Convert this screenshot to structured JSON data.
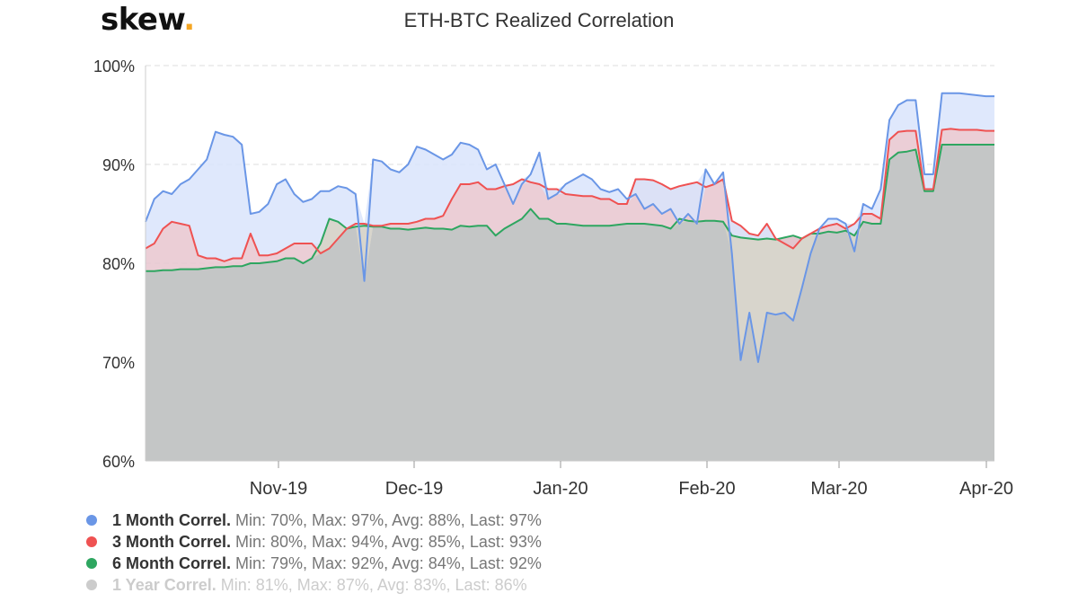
{
  "logo": {
    "text": "skew",
    "dot": "."
  },
  "colors": {
    "blue": "#6a96e6",
    "blue_fill": "#d9e4fb",
    "red": "#ef5252",
    "red_fill": "#e7c5cf",
    "green": "#2ea660",
    "green_fill": "#a8d8bb",
    "gray_fill": "#c4c6c6",
    "tan_fill": "#d8d2c4",
    "inactive": "#cccccc"
  },
  "chart_data": {
    "type": "area",
    "title": "ETH-BTC Realized Correlation",
    "ylim": [
      60,
      100
    ],
    "y_ticks": [
      "60%",
      "70%",
      "80%",
      "90%",
      "100%"
    ],
    "x_tick_labels": [
      "Nov-19",
      "Dec-19",
      "Jan-20",
      "Feb-20",
      "Mar-20",
      "Apr-20"
    ],
    "grid": "horizontal dashed",
    "legend_position": "bottom-left",
    "series": [
      {
        "name": "1 Month Correl.",
        "stats": "Min: 70%, Max: 97%, Avg: 88%, Last: 97%",
        "values": [
          84.2,
          86.5,
          87.3,
          87.0,
          88.0,
          88.5,
          89.5,
          90.5,
          93.3,
          93.0,
          92.8,
          92.0,
          85.0,
          85.2,
          86.0,
          88.0,
          88.5,
          87.0,
          86.2,
          86.5,
          87.3,
          87.3,
          87.8,
          87.6,
          87.0,
          78.2,
          90.5,
          90.3,
          89.5,
          89.2,
          90.0,
          91.8,
          91.5,
          91.0,
          90.5,
          91.0,
          92.2,
          92.0,
          91.5,
          89.5,
          90.0,
          88.0,
          86.0,
          88.0,
          89.0,
          91.2,
          86.5,
          87.0,
          88.0,
          88.5,
          89.0,
          88.5,
          87.5,
          87.2,
          87.5,
          86.5,
          87.0,
          85.5,
          86.0,
          85.0,
          85.5,
          84.0,
          85.0,
          84.0,
          89.5,
          88.0,
          89.2,
          81.0,
          70.2,
          75.0,
          70.0,
          75.0,
          74.8,
          75.0,
          74.2,
          77.5,
          81.0,
          83.5,
          84.5,
          84.5,
          84.0,
          81.2,
          86.0,
          85.5,
          87.5,
          94.5,
          96.0,
          96.5,
          96.5,
          89.0,
          89.0,
          97.2,
          97.2,
          97.2,
          97.1,
          97.0,
          96.9,
          96.9
        ]
      },
      {
        "name": "3 Month Correl.",
        "stats": "Min: 80%, Max: 94%, Avg: 85%, Last: 93%",
        "values": [
          81.5,
          82.0,
          83.5,
          84.2,
          84.0,
          83.8,
          80.8,
          80.5,
          80.5,
          80.2,
          80.5,
          80.5,
          83.0,
          80.8,
          80.8,
          81.0,
          81.5,
          82.0,
          82.0,
          82.0,
          81.0,
          81.5,
          82.5,
          83.5,
          84.0,
          84.0,
          83.8,
          83.8,
          84.0,
          84.0,
          84.0,
          84.2,
          84.5,
          84.5,
          84.8,
          86.5,
          88.0,
          88.0,
          88.2,
          87.5,
          87.5,
          87.8,
          88.0,
          88.5,
          88.2,
          88.0,
          87.5,
          87.5,
          87.0,
          86.9,
          86.8,
          86.8,
          86.5,
          86.5,
          86.0,
          86.0,
          88.5,
          88.5,
          88.4,
          88.0,
          87.5,
          87.8,
          88.0,
          88.2,
          87.7,
          88.0,
          88.5,
          84.3,
          83.8,
          83.0,
          82.8,
          84.0,
          82.5,
          82.0,
          81.5,
          82.5,
          83.0,
          83.5,
          83.8,
          84.0,
          83.5,
          84.0,
          85.0,
          85.0,
          84.5,
          92.5,
          93.3,
          93.4,
          93.4,
          87.5,
          87.5,
          93.5,
          93.6,
          93.5,
          93.5,
          93.5,
          93.4,
          93.4
        ]
      },
      {
        "name": "6 Month Correl.",
        "stats": "Min: 79%, Max: 92%, Avg: 84%, Last: 92%",
        "values": [
          79.2,
          79.2,
          79.3,
          79.3,
          79.4,
          79.4,
          79.4,
          79.5,
          79.6,
          79.6,
          79.7,
          79.7,
          80.0,
          80.0,
          80.1,
          80.2,
          80.5,
          80.5,
          80.0,
          80.5,
          82.0,
          84.5,
          84.2,
          83.5,
          83.7,
          83.8,
          83.7,
          83.7,
          83.5,
          83.5,
          83.4,
          83.5,
          83.6,
          83.5,
          83.5,
          83.4,
          83.8,
          83.7,
          83.8,
          83.8,
          82.8,
          83.5,
          84.0,
          84.5,
          85.5,
          84.5,
          84.5,
          84.0,
          84.0,
          83.9,
          83.8,
          83.8,
          83.8,
          83.8,
          83.9,
          84.0,
          84.0,
          84.0,
          83.9,
          83.8,
          83.5,
          84.5,
          84.3,
          84.2,
          84.3,
          84.3,
          84.2,
          82.8,
          82.6,
          82.5,
          82.4,
          82.5,
          82.4,
          82.6,
          82.8,
          82.5,
          83.0,
          83.0,
          83.2,
          83.1,
          83.3,
          82.8,
          84.2,
          84.0,
          84.0,
          90.5,
          91.2,
          91.3,
          91.5,
          87.3,
          87.3,
          92.0,
          92.0,
          92.0,
          92.0,
          92.0,
          92.0,
          92.0
        ]
      },
      {
        "name": "1 Year Correl.",
        "stats": "Min: 81%, Max: 87%, Avg: 83%, Last: 86%",
        "visible": false
      }
    ]
  }
}
